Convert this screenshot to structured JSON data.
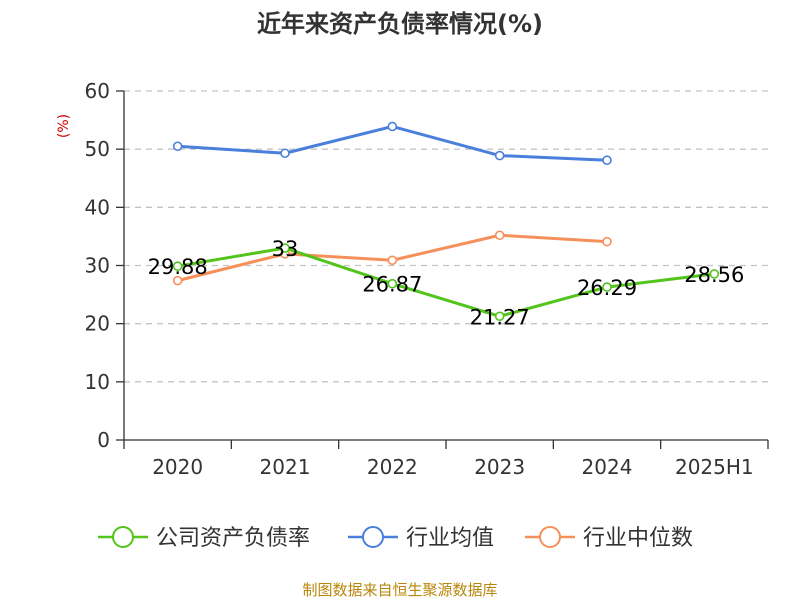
{
  "chart_data": {
    "type": "line",
    "title": "近年来资产负债率情况(%)",
    "ylabel": "(%)",
    "categories": [
      "2020",
      "2021",
      "2022",
      "2023",
      "2024",
      "2025H1"
    ],
    "ylim": [
      0,
      60
    ],
    "yticks": [
      0,
      10,
      20,
      30,
      40,
      50,
      60
    ],
    "grid": true,
    "legend_position": "bottom",
    "series": [
      {
        "name": "公司资产负债率",
        "color": "#52c41a",
        "values": [
          29.88,
          33,
          26.87,
          21.27,
          26.29,
          28.56
        ],
        "labels": [
          "29.88",
          "33",
          "26.87",
          "21.27",
          "26.29",
          "28.56"
        ]
      },
      {
        "name": "行业均值",
        "color": "#4a7fdc",
        "values": [
          50.5,
          49.3,
          53.9,
          48.9,
          48.1,
          null
        ]
      },
      {
        "name": "行业中位数",
        "color": "#f5905a",
        "values": [
          27.4,
          32.0,
          30.9,
          35.2,
          34.1,
          null
        ]
      }
    ],
    "source": "制图数据来自恒生聚源数据库"
  }
}
